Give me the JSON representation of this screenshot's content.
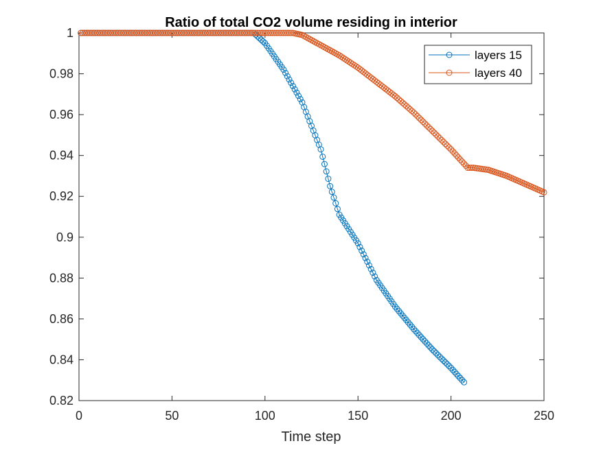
{
  "chart_data": {
    "type": "line",
    "title": "Ratio of total CO2 volume residing in interior",
    "xlabel": "Time step",
    "ylabel": "",
    "xlim": [
      0,
      250
    ],
    "ylim": [
      0.82,
      1.0
    ],
    "xticks": [
      0,
      50,
      100,
      150,
      200,
      250
    ],
    "xtick_labels": [
      "0",
      "50",
      "100",
      "150",
      "200",
      "250"
    ],
    "yticks": [
      0.82,
      0.84,
      0.86,
      0.88,
      0.9,
      0.92,
      0.94,
      0.96,
      0.98,
      1.0
    ],
    "ytick_labels": [
      "0.82",
      "0.84",
      "0.86",
      "0.88",
      "0.9",
      "0.92",
      "0.94",
      "0.96",
      "0.98",
      "1"
    ],
    "grid": false,
    "legend_position": "top-right",
    "marker": "circle",
    "series": [
      {
        "name": "layers 15",
        "color": "#0072BD",
        "n_points": 207,
        "keypoints": [
          [
            1,
            1.0
          ],
          [
            94,
            1.0
          ],
          [
            100,
            0.995
          ],
          [
            110,
            0.982
          ],
          [
            120,
            0.966
          ],
          [
            130,
            0.943
          ],
          [
            135,
            0.925
          ],
          [
            140,
            0.911
          ],
          [
            150,
            0.897
          ],
          [
            160,
            0.879
          ],
          [
            170,
            0.866
          ],
          [
            180,
            0.855
          ],
          [
            190,
            0.845
          ],
          [
            200,
            0.836
          ],
          [
            207,
            0.829
          ]
        ]
      },
      {
        "name": "layers 40",
        "color": "#D95319",
        "n_points": 250,
        "keypoints": [
          [
            1,
            1.0
          ],
          [
            115,
            1.0
          ],
          [
            120,
            0.999
          ],
          [
            130,
            0.994
          ],
          [
            140,
            0.989
          ],
          [
            150,
            0.983
          ],
          [
            160,
            0.976
          ],
          [
            170,
            0.969
          ],
          [
            180,
            0.961
          ],
          [
            190,
            0.952
          ],
          [
            200,
            0.943
          ],
          [
            209,
            0.934
          ],
          [
            212,
            0.934
          ],
          [
            220,
            0.933
          ],
          [
            230,
            0.93
          ],
          [
            240,
            0.926
          ],
          [
            250,
            0.922
          ]
        ]
      }
    ]
  }
}
